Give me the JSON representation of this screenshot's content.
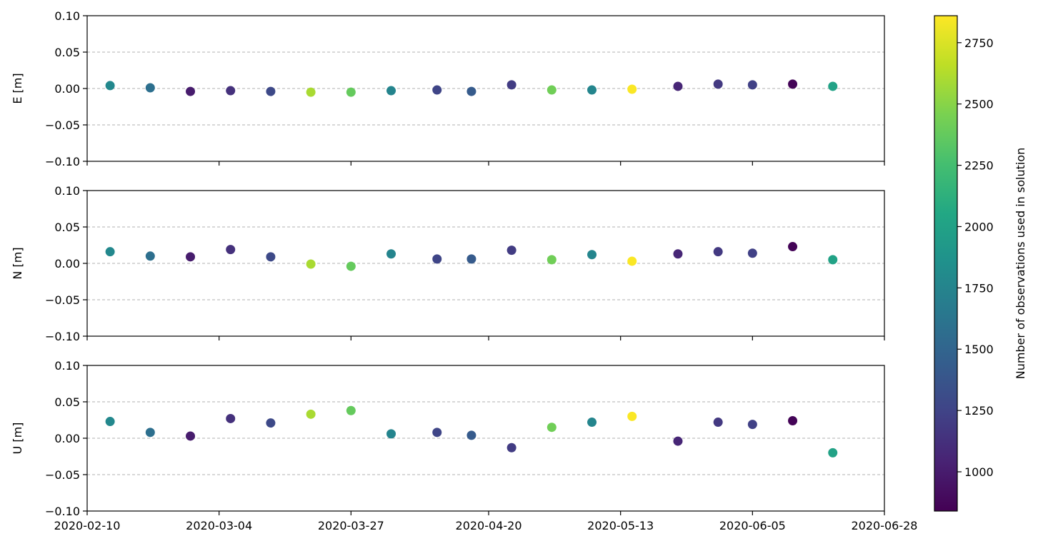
{
  "chart_data": {
    "type": "scatter",
    "x_type": "date",
    "xlim": [
      "2020-02-10",
      "2020-06-28"
    ],
    "x_ticks": [
      "2020-02-10",
      "2020-03-04",
      "2020-03-27",
      "2020-04-20",
      "2020-05-13",
      "2020-06-05",
      "2020-06-28"
    ],
    "y_ticks": [
      "−0.10",
      "−0.05",
      "0.00",
      "0.05",
      "0.10"
    ],
    "y_tick_values": [
      -0.1,
      -0.05,
      0.0,
      0.05,
      0.1
    ],
    "ylim": [
      -0.1,
      0.1
    ],
    "grid": "horizontal dashed at ±0.05 and 0.00",
    "dates": [
      "2020-02-14",
      "2020-02-21",
      "2020-02-28",
      "2020-03-06",
      "2020-03-13",
      "2020-03-20",
      "2020-03-27",
      "2020-04-03",
      "2020-04-11",
      "2020-04-17",
      "2020-04-24",
      "2020-05-01",
      "2020-05-08",
      "2020-05-15",
      "2020-05-23",
      "2020-05-30",
      "2020-06-05",
      "2020-06-12",
      "2020-06-19"
    ],
    "observations": [
      1780,
      1580,
      1000,
      1130,
      1290,
      2600,
      2380,
      1750,
      1260,
      1420,
      1200,
      2420,
      1760,
      2850,
      1060,
      1180,
      1230,
      860,
      2010
    ],
    "panels": [
      {
        "ylabel": "E [m]",
        "values": [
          0.004,
          0.001,
          -0.004,
          -0.003,
          -0.004,
          -0.005,
          -0.005,
          -0.003,
          -0.002,
          -0.004,
          0.005,
          -0.002,
          -0.002,
          -0.001,
          0.003,
          0.006,
          0.005,
          0.006,
          0.003
        ]
      },
      {
        "ylabel": "N [m]",
        "values": [
          0.016,
          0.01,
          0.009,
          0.019,
          0.009,
          -0.001,
          -0.004,
          0.013,
          0.006,
          0.006,
          0.018,
          0.005,
          0.012,
          0.003,
          0.013,
          0.016,
          0.014,
          0.023,
          0.005
        ]
      },
      {
        "ylabel": "U [m]",
        "values": [
          0.023,
          0.008,
          0.003,
          0.027,
          0.021,
          0.033,
          0.038,
          0.006,
          0.008,
          0.004,
          -0.013,
          0.015,
          0.022,
          0.03,
          -0.004,
          0.022,
          0.019,
          0.024,
          -0.02
        ]
      }
    ],
    "colorbar": {
      "label": "Number of observations used in solution",
      "colormap": "viridis",
      "range": [
        840,
        2860
      ],
      "ticks": [
        "1000",
        "1250",
        "1500",
        "1750",
        "2000",
        "2250",
        "2500",
        "2750"
      ],
      "tick_values": [
        1000,
        1250,
        1500,
        1750,
        2000,
        2250,
        2500,
        2750
      ]
    }
  }
}
